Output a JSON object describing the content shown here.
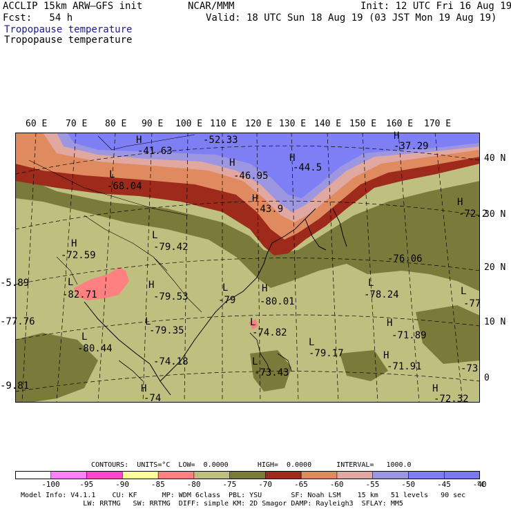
{
  "header": {
    "model": "ACCLIP 15km ARW–GFS init",
    "center": "NCAR/MMM",
    "init": "Init: 12 UTC Fri 16 Aug 19",
    "fcst": "Fcst:   54 h",
    "valid": "Valid: 18 UTC Sun 18 Aug 19 (03 JST Mon 19 Aug 19)",
    "field1": "Tropopause temperature",
    "field2": "Tropopause temperature",
    "field1_color": "#1a1a8c"
  },
  "lon_labels": [
    "60 E",
    "70 E",
    "80 E",
    "90 E",
    "100 E",
    "110 E",
    "120 E",
    "130 E",
    "140 E",
    "150 E",
    "160 E",
    "170 E"
  ],
  "lat_labels": [
    "40 N",
    "30 N",
    "20 N",
    "10 N",
    "0"
  ],
  "centers": [
    {
      "label": "H",
      "value": "-41.63"
    },
    {
      "label": "",
      "value": "-52.33"
    },
    {
      "label": "H",
      "value": "-46.95"
    },
    {
      "label": "H",
      "value": "-44.5"
    },
    {
      "label": "H",
      "value": "-37.29"
    },
    {
      "label": "L",
      "value": "-68.04"
    },
    {
      "label": "H",
      "value": "-43.9"
    },
    {
      "label": "H",
      "value": "-72.59"
    },
    {
      "label": "L",
      "value": "-79.42"
    },
    {
      "label": "H",
      "value": "-72.2"
    },
    {
      "label": "",
      "value": "-76.06"
    },
    {
      "label": "",
      "value": "-5.89"
    },
    {
      "label": "L",
      "value": "-82.71"
    },
    {
      "label": "H",
      "value": "-79.53"
    },
    {
      "label": "L",
      "value": "-79"
    },
    {
      "label": "H",
      "value": "-80.01"
    },
    {
      "label": "L",
      "value": "-78.24"
    },
    {
      "label": "L",
      "value": "-77"
    },
    {
      "label": "",
      "value": "-77.76"
    },
    {
      "label": "L",
      "value": "-79.35"
    },
    {
      "label": "L",
      "value": "-74.82"
    },
    {
      "label": "H",
      "value": "-71.89"
    },
    {
      "label": "L",
      "value": "-80.44"
    },
    {
      "label": "",
      "value": "-74.18"
    },
    {
      "label": "L",
      "value": "-79.17"
    },
    {
      "label": "L",
      "value": "-73.43"
    },
    {
      "label": "H",
      "value": "-71.91"
    },
    {
      "label": "",
      "value": "-73"
    },
    {
      "label": "",
      "value": "-9.81"
    },
    {
      "label": "H",
      "value": "-72.32"
    },
    {
      "label": "H",
      "value": "-74"
    }
  ],
  "colorbar": {
    "ticks": [
      "-100",
      "-95",
      "-90",
      "-85",
      "-80",
      "-75",
      "-70",
      "-65",
      "-60",
      "-55",
      "-50",
      "-45",
      "-40"
    ],
    "unit": "°C",
    "colors": [
      "#ffffff",
      "#ff80ff",
      "#ff44cc",
      "#ffff99",
      "#ff8080",
      "#bfbf80",
      "#7a7a3a",
      "#9e2a1c",
      "#e08a60",
      "#e0a8a0",
      "#9d96e0",
      "#7f7ff5",
      "#7a7af0"
    ]
  },
  "contour_info": "CONTOURS:  UNITS=°C  LOW=  0.0000       HIGH=  0.0000      INTERVAL=   1000.0",
  "footer": {
    "line1": "Model Info: V4.1.1    CU: KF      MP: WDM 6class  PBL: YSU       SF: Noah LSM    15 km   51 levels   90 sec",
    "line2": "               LW: RRTMG   SW: RRTMG  DIFF: simple KM: 2D Smagor DAMP: Rayleigh3  SFLAY: MM5"
  }
}
